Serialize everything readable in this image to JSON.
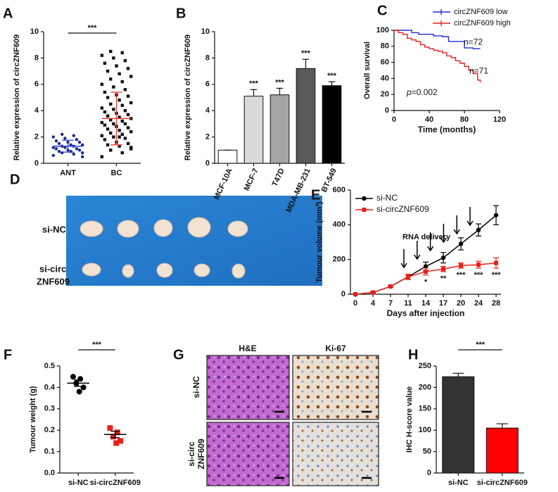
{
  "chart_data": [
    {
      "type": "strip",
      "panel": "A",
      "ylabel": "Relative expression of circZNF609",
      "categories": [
        "ANT",
        "BC"
      ],
      "groups": [
        {
          "marker": "circle",
          "color": "#1c2a8c",
          "line_color": "#2b3fd6",
          "mean": 1.3,
          "sd": 0.45,
          "values": [
            0.6,
            0.7,
            0.8,
            0.8,
            0.9,
            0.9,
            1.0,
            1.0,
            1.1,
            1.1,
            1.2,
            1.2,
            1.3,
            1.3,
            1.4,
            1.4,
            1.5,
            1.6,
            1.6,
            1.7,
            1.8,
            1.9,
            2.0,
            2.1,
            2.2,
            0.5
          ]
        },
        {
          "marker": "square",
          "color": "#111111",
          "line_color": "#e8382f",
          "mean": 3.4,
          "sd": 2.0,
          "values": [
            0.5,
            0.8,
            1.0,
            1.1,
            1.3,
            1.4,
            1.5,
            1.6,
            1.8,
            1.9,
            2.0,
            2.1,
            2.2,
            2.3,
            2.4,
            2.5,
            2.6,
            2.7,
            2.8,
            2.9,
            3.0,
            3.0,
            3.1,
            3.2,
            3.3,
            3.4,
            3.5,
            3.6,
            3.7,
            3.8,
            3.9,
            4.0,
            4.1,
            4.2,
            4.4,
            4.5,
            4.6,
            4.8,
            5.0,
            5.1,
            5.2,
            5.4,
            5.6,
            5.8,
            6.0,
            6.2,
            6.4,
            6.6,
            6.8,
            7.0,
            7.2,
            7.4,
            7.6,
            7.8,
            8.0,
            8.2,
            8.4,
            8.5,
            1.2,
            2.0
          ]
        }
      ],
      "annotation": "***",
      "ylim": [
        0,
        10
      ],
      "yticks": [
        0,
        2,
        4,
        6,
        8,
        10
      ]
    },
    {
      "type": "bar",
      "panel": "B",
      "ylabel": "Relative expression of circZNF609",
      "categories": [
        "MCF-10A",
        "MCF-7",
        "T47D",
        "MDA-MB-231",
        "BT-549"
      ],
      "values": [
        1,
        5.1,
        5.2,
        7.2,
        5.9
      ],
      "errors": [
        0,
        0.5,
        0.5,
        0.7,
        0.3
      ],
      "colors": [
        "#ffffff",
        "#d9d9d9",
        "#a6a6a6",
        "#595959",
        "#000000"
      ],
      "significance": [
        null,
        "***",
        "***",
        "***",
        "***"
      ],
      "ylim": [
        0,
        10
      ],
      "yticks": [
        0,
        2,
        4,
        6,
        8,
        10
      ]
    },
    {
      "type": "step",
      "panel": "C",
      "xlabel": "Time (months)",
      "ylabel": "Overall survival",
      "series": [
        {
          "name": "circZNF609 low",
          "color": "#1f2fd6",
          "n_label": "n=72",
          "x": [
            0,
            10,
            20,
            28,
            35,
            45,
            55,
            62,
            70,
            80,
            90,
            98
          ],
          "y": [
            100,
            100,
            97,
            95,
            95,
            93,
            92,
            86,
            86,
            78,
            77,
            77
          ]
        },
        {
          "name": "circZNF609 high",
          "color": "#e8201c",
          "n_label": "n=71",
          "x": [
            0,
            5,
            10,
            15,
            20,
            25,
            30,
            35,
            40,
            45,
            50,
            55,
            60,
            65,
            70,
            75,
            80,
            85,
            90,
            95,
            98
          ],
          "y": [
            100,
            97,
            95,
            90,
            88,
            86,
            82,
            79,
            77,
            75,
            74,
            72,
            68,
            66,
            62,
            59,
            55,
            50,
            46,
            38,
            35
          ]
        }
      ],
      "p_symbol": "p",
      "p_text": "=0.002",
      "xlim": [
        0,
        120
      ],
      "xticks": [
        0,
        40,
        80,
        120
      ],
      "ylim": [
        0,
        100
      ],
      "yticks": [
        0,
        20,
        40,
        60,
        80,
        100
      ]
    },
    {
      "type": "line",
      "panel": "E",
      "xlabel": "Days after injection",
      "ylabel": "Tumour volume (mm³)",
      "categories": [
        "0",
        "4",
        "7",
        "11",
        "14",
        "17",
        "20",
        "24",
        "28"
      ],
      "series": [
        {
          "name": "si-NC",
          "color": "#000000",
          "marker": "circle",
          "values": [
            0,
            10,
            45,
            100,
            160,
            210,
            290,
            370,
            455
          ],
          "errors": [
            0,
            3,
            5,
            15,
            25,
            30,
            35,
            35,
            55
          ]
        },
        {
          "name": "si-circZNF609",
          "color": "#e8201c",
          "marker": "square",
          "values": [
            0,
            10,
            45,
            100,
            130,
            145,
            165,
            170,
            180
          ],
          "errors": [
            0,
            3,
            5,
            15,
            20,
            15,
            15,
            20,
            30
          ]
        }
      ],
      "significance": [
        null,
        null,
        null,
        null,
        "*",
        "**",
        "***",
        "***",
        "***"
      ],
      "annotation": "RNA delivery",
      "ylim": [
        0,
        600
      ],
      "yticks": [
        0,
        200,
        400,
        600
      ]
    },
    {
      "type": "strip",
      "panel": "F",
      "ylabel": "Tumour weight (g)",
      "categories": [
        "si-NC",
        "si-circZNF609"
      ],
      "groups": [
        {
          "marker": "circle",
          "color": "#000000",
          "line_color": "#000000",
          "mean": 0.42,
          "sd": 0.015,
          "values": [
            0.45,
            0.44,
            0.42,
            0.4,
            0.38
          ]
        },
        {
          "marker": "square",
          "color": "#e8201c",
          "line_color": "#000000",
          "mean": 0.18,
          "sd": 0.015,
          "values": [
            0.21,
            0.19,
            0.17,
            0.15,
            0.14
          ]
        }
      ],
      "annotation": "***",
      "ylim": [
        0,
        0.5
      ],
      "yticks": [
        {
          "value": 0,
          "label": "0.0"
        },
        0.1,
        0.2,
        0.3,
        0.4,
        0.5
      ]
    },
    {
      "type": "bar",
      "panel": "H",
      "ylabel": "IHC H-score value",
      "categories": [
        "si-NC",
        "si-circZNF609"
      ],
      "values": [
        225,
        105
      ],
      "errors": [
        8,
        10
      ],
      "colors": [
        "#333333",
        "#ff0000"
      ],
      "annotation": "***",
      "ylim": [
        0,
        250
      ],
      "yticks": [
        0,
        50,
        100,
        150,
        200,
        250
      ]
    }
  ],
  "figures": {
    "D": {
      "panel": "D",
      "rows": [
        [
          "si-NC"
        ],
        [
          "si-circ",
          "ZNF609"
        ]
      ]
    },
    "G": {
      "panel": "G",
      "columns": [
        "H&E",
        "Ki-67"
      ],
      "rows": [
        [
          "si-NC"
        ],
        [
          "si-circ",
          "ZNF609"
        ]
      ]
    }
  }
}
